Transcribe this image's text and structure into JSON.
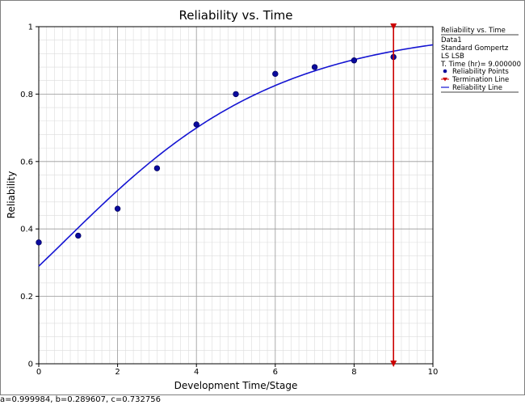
{
  "chart_data": {
    "type": "scatter",
    "title": "Reliability vs. Time",
    "xlabel": "Development Time/Stage",
    "ylabel": "Reliability",
    "xlim": [
      0,
      10
    ],
    "ylim": [
      0,
      1
    ],
    "x_ticks": [
      0,
      2,
      4,
      6,
      8,
      10
    ],
    "y_ticks": [
      0,
      0.2,
      0.4,
      0.6,
      0.8,
      1
    ],
    "x_tick_labels": [
      "0",
      "2",
      "4",
      "6",
      "8",
      "10"
    ],
    "y_tick_labels": [
      "0",
      "0.2",
      "0.4",
      "0.6",
      "0.8",
      "1"
    ],
    "grid": true,
    "minor_grid": true,
    "legend_position": "right",
    "model": {
      "name": "Standard Gompertz",
      "a": 0.999984,
      "b": 0.289607,
      "c": 0.732756
    },
    "termination_time": 9,
    "series": [
      {
        "name": "Reliability Points",
        "type": "scatter",
        "color": "#0a0a9c",
        "x": [
          0,
          1,
          2,
          3,
          4,
          5,
          6,
          7,
          8,
          9
        ],
        "y": [
          0.36,
          0.38,
          0.46,
          0.58,
          0.71,
          0.8,
          0.86,
          0.88,
          0.9,
          0.91
        ]
      },
      {
        "name": "Reliability Line",
        "type": "line",
        "color": "#1414d2",
        "function": "gompertz"
      },
      {
        "name": "Termination Line",
        "type": "vline",
        "color": "#cc0000",
        "x": 9
      }
    ]
  },
  "legend": {
    "title": "Reliability vs. Time",
    "data_name": "Data1",
    "model_name": "Standard Gompertz",
    "method": "LS LSB",
    "term_time": "T. Time (hr)= 9.000000",
    "entries": [
      "Reliability Points",
      "Termination Line",
      "Reliability Line"
    ]
  },
  "status_text": "a=0.999984, b=0.289607, c=0.732756"
}
